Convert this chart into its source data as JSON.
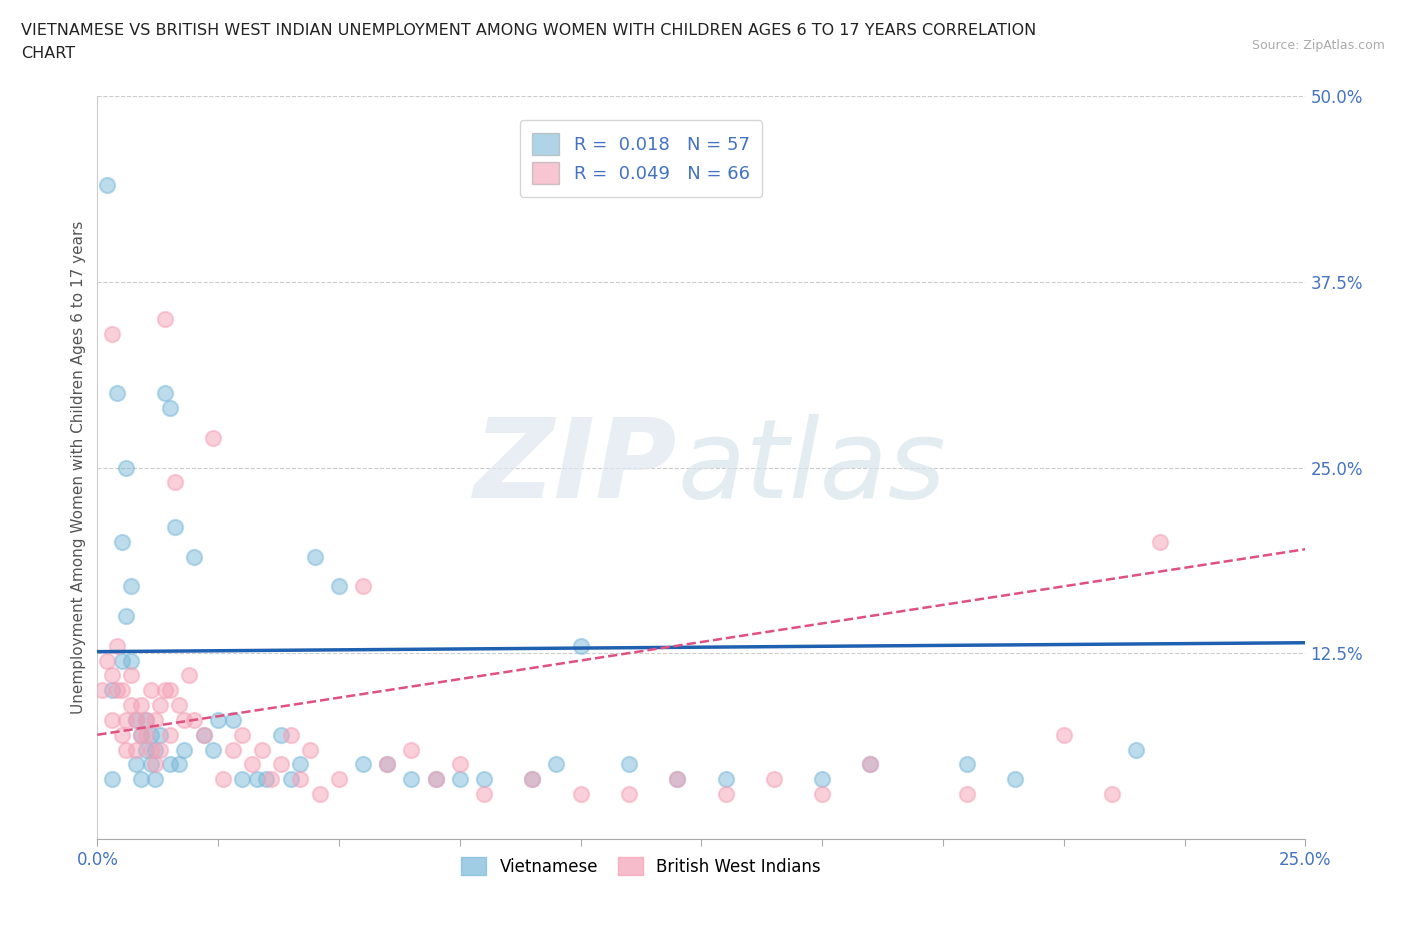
{
  "title_line1": "VIETNAMESE VS BRITISH WEST INDIAN UNEMPLOYMENT AMONG WOMEN WITH CHILDREN AGES 6 TO 17 YEARS CORRELATION",
  "title_line2": "CHART",
  "source": "Source: ZipAtlas.com",
  "ylabel": "Unemployment Among Women with Children Ages 6 to 17 years",
  "xlim": [
    0.0,
    0.25
  ],
  "ylim": [
    0.0,
    0.5
  ],
  "xticks": [
    0.0,
    0.025,
    0.05,
    0.075,
    0.1,
    0.125,
    0.15,
    0.175,
    0.2,
    0.225,
    0.25
  ],
  "xticklabels": [
    "0.0%",
    "",
    "",
    "",
    "",
    "",
    "",
    "",
    "",
    "",
    "25.0%"
  ],
  "yticks": [
    0.0,
    0.125,
    0.25,
    0.375,
    0.5
  ],
  "yticklabels": [
    "",
    "12.5%",
    "25.0%",
    "37.5%",
    "50.0%"
  ],
  "vietnamese_color": "#7ab8d9",
  "bwi_color": "#f4a0b5",
  "trendline_vietnamese_color": "#2060b0",
  "trendline_bwi_color": "#e05080",
  "R_vietnamese": 0.018,
  "N_vietnamese": 57,
  "R_bwi": 0.049,
  "N_bwi": 66,
  "background_color": "#ffffff",
  "vietnamese_x": [
    0.002,
    0.003,
    0.004,
    0.005,
    0.005,
    0.006,
    0.006,
    0.007,
    0.007,
    0.008,
    0.008,
    0.009,
    0.009,
    0.01,
    0.01,
    0.011,
    0.011,
    0.012,
    0.012,
    0.013,
    0.014,
    0.015,
    0.015,
    0.016,
    0.017,
    0.018,
    0.02,
    0.022,
    0.024,
    0.025,
    0.028,
    0.03,
    0.033,
    0.035,
    0.038,
    0.04,
    0.042,
    0.045,
    0.05,
    0.055,
    0.06,
    0.065,
    0.07,
    0.075,
    0.08,
    0.09,
    0.095,
    0.1,
    0.11,
    0.12,
    0.13,
    0.15,
    0.16,
    0.18,
    0.19,
    0.215,
    0.003
  ],
  "vietnamese_y": [
    0.44,
    0.1,
    0.3,
    0.2,
    0.12,
    0.15,
    0.25,
    0.12,
    0.17,
    0.08,
    0.05,
    0.07,
    0.04,
    0.06,
    0.08,
    0.05,
    0.07,
    0.06,
    0.04,
    0.07,
    0.3,
    0.29,
    0.05,
    0.21,
    0.05,
    0.06,
    0.19,
    0.07,
    0.06,
    0.08,
    0.08,
    0.04,
    0.04,
    0.04,
    0.07,
    0.04,
    0.05,
    0.19,
    0.17,
    0.05,
    0.05,
    0.04,
    0.04,
    0.04,
    0.04,
    0.04,
    0.05,
    0.13,
    0.05,
    0.04,
    0.04,
    0.04,
    0.05,
    0.05,
    0.04,
    0.06,
    0.04
  ],
  "bwi_x": [
    0.001,
    0.002,
    0.003,
    0.003,
    0.004,
    0.004,
    0.005,
    0.005,
    0.006,
    0.006,
    0.007,
    0.007,
    0.008,
    0.008,
    0.009,
    0.009,
    0.01,
    0.01,
    0.011,
    0.011,
    0.012,
    0.012,
    0.013,
    0.013,
    0.014,
    0.014,
    0.015,
    0.015,
    0.016,
    0.017,
    0.018,
    0.019,
    0.02,
    0.022,
    0.024,
    0.026,
    0.028,
    0.03,
    0.032,
    0.034,
    0.036,
    0.038,
    0.04,
    0.042,
    0.044,
    0.046,
    0.05,
    0.055,
    0.06,
    0.065,
    0.07,
    0.075,
    0.08,
    0.09,
    0.1,
    0.11,
    0.12,
    0.13,
    0.14,
    0.15,
    0.16,
    0.18,
    0.2,
    0.21,
    0.22,
    0.003
  ],
  "bwi_y": [
    0.1,
    0.12,
    0.08,
    0.11,
    0.1,
    0.13,
    0.07,
    0.1,
    0.06,
    0.08,
    0.11,
    0.09,
    0.08,
    0.06,
    0.09,
    0.07,
    0.08,
    0.07,
    0.1,
    0.06,
    0.08,
    0.05,
    0.09,
    0.06,
    0.35,
    0.1,
    0.1,
    0.07,
    0.24,
    0.09,
    0.08,
    0.11,
    0.08,
    0.07,
    0.27,
    0.04,
    0.06,
    0.07,
    0.05,
    0.06,
    0.04,
    0.05,
    0.07,
    0.04,
    0.06,
    0.03,
    0.04,
    0.17,
    0.05,
    0.06,
    0.04,
    0.05,
    0.03,
    0.04,
    0.03,
    0.03,
    0.04,
    0.03,
    0.04,
    0.03,
    0.05,
    0.03,
    0.07,
    0.03,
    0.2,
    0.34
  ]
}
